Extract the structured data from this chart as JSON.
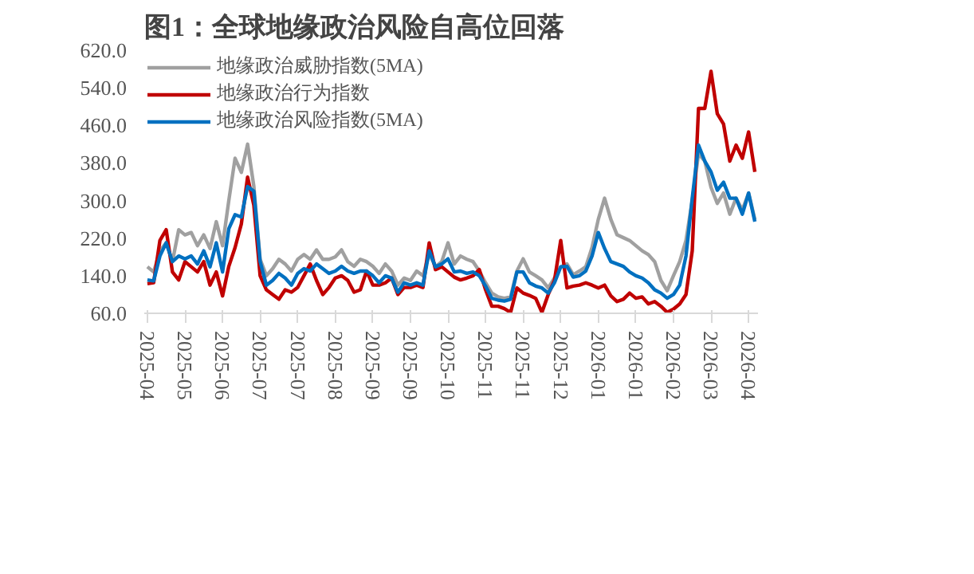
{
  "chart_data": {
    "type": "line",
    "title": "图1：全球地缘政治风险自高位回落",
    "categories": [
      "2025-04",
      null,
      null,
      null,
      null,
      null,
      "2025-05",
      null,
      null,
      null,
      null,
      null,
      "2025-06",
      null,
      null,
      null,
      null,
      null,
      "2025-07",
      null,
      null,
      null,
      null,
      null,
      "2025-07",
      null,
      null,
      null,
      null,
      null,
      "2025-08",
      null,
      null,
      null,
      null,
      null,
      "2025-09",
      null,
      null,
      null,
      null,
      null,
      "2025-09",
      null,
      null,
      null,
      null,
      null,
      "2025-10",
      null,
      null,
      null,
      null,
      null,
      "2025-11",
      null,
      null,
      null,
      null,
      null,
      "2025-11",
      null,
      null,
      null,
      null,
      null,
      "2025-12",
      null,
      null,
      null,
      null,
      null,
      "2026-01",
      null,
      null,
      null,
      null,
      null,
      "2026-01",
      null,
      null,
      null,
      null,
      null,
      "2026-02",
      null,
      null,
      null,
      null,
      null,
      "2026-03",
      null,
      null,
      null,
      null,
      null,
      "2026-04",
      null
    ],
    "series": [
      {
        "name": "地缘政治威胁指数(5MA)",
        "color": "#a0a0a0",
        "values": [
          159,
          148,
          193,
          210,
          170,
          238,
          227,
          232,
          204,
          227,
          198,
          255,
          204,
          300,
          390,
          360,
          420,
          330,
          175,
          140,
          155,
          175,
          165,
          150,
          175,
          185,
          175,
          195,
          175,
          175,
          180,
          195,
          170,
          160,
          175,
          170,
          160,
          145,
          165,
          150,
          120,
          135,
          130,
          150,
          140,
          187,
          159,
          170,
          210,
          165,
          182,
          175,
          170,
          150,
          125,
          103,
          95,
          92,
          95,
          150,
          176,
          148,
          140,
          131,
          114,
          135,
          159,
          165,
          142,
          150,
          159,
          200,
          260,
          305,
          260,
          227,
          221,
          215,
          204,
          193,
          185,
          170,
          130,
          108,
          140,
          170,
          215,
          300,
          400,
          384,
          328,
          294,
          316,
          271,
          305,
          280,
          316,
          260
        ]
      },
      {
        "name": "地缘政治行为指数",
        "color": "#c00000",
        "values": [
          123,
          125,
          215,
          238,
          148,
          131,
          170,
          159,
          148,
          170,
          120,
          148,
          97,
          160,
          200,
          250,
          350,
          290,
          140,
          110,
          100,
          90,
          110,
          105,
          115,
          140,
          165,
          130,
          100,
          115,
          135,
          140,
          130,
          105,
          110,
          150,
          120,
          120,
          125,
          135,
          100,
          115,
          115,
          120,
          115,
          210,
          153,
          159,
          148,
          137,
          131,
          135,
          140,
          153,
          110,
          75,
          75,
          70,
          62,
          114,
          103,
          98,
          92,
          62,
          100,
          130,
          215,
          114,
          118,
          120,
          125,
          120,
          114,
          120,
          97,
          85,
          90,
          103,
          92,
          95,
          80,
          85,
          75,
          62,
          69,
          80,
          100,
          193,
          496,
          496,
          575,
          485,
          463,
          384,
          418,
          390,
          446,
          361
        ]
      },
      {
        "name": "地缘政治风险指数(5MA)",
        "color": "#0070c0",
        "values": [
          131,
          129,
          182,
          210,
          170,
          182,
          176,
          182,
          165,
          193,
          159,
          210,
          148,
          240,
          270,
          265,
          330,
          320,
          170,
          120,
          130,
          145,
          135,
          120,
          145,
          155,
          150,
          165,
          155,
          145,
          150,
          160,
          150,
          145,
          150,
          150,
          140,
          125,
          140,
          135,
          105,
          125,
          120,
          125,
          120,
          193,
          159,
          165,
          176,
          148,
          150,
          145,
          148,
          140,
          118,
          92,
          88,
          86,
          90,
          148,
          148,
          125,
          118,
          114,
          103,
          125,
          159,
          160,
          137,
          140,
          150,
          182,
          232,
          198,
          170,
          165,
          160,
          148,
          140,
          135,
          125,
          110,
          103,
          92,
          100,
          120,
          182,
          305,
          418,
          384,
          361,
          322,
          339,
          305,
          305,
          271,
          316,
          255
        ]
      }
    ],
    "ylim": [
      60,
      620
    ],
    "yticks": [
      {
        "value": 60,
        "label": "60.0"
      },
      {
        "value": 140,
        "label": "140.0"
      },
      {
        "value": 220,
        "label": "220.0"
      },
      {
        "value": 300,
        "label": "300.0"
      },
      {
        "value": 380,
        "label": "380.0"
      },
      {
        "value": 460,
        "label": "460.0"
      },
      {
        "value": 540,
        "label": "540.0"
      },
      {
        "value": 620,
        "label": "620.0"
      }
    ],
    "grid": false,
    "legend": "top left",
    "line_style": "solid"
  }
}
